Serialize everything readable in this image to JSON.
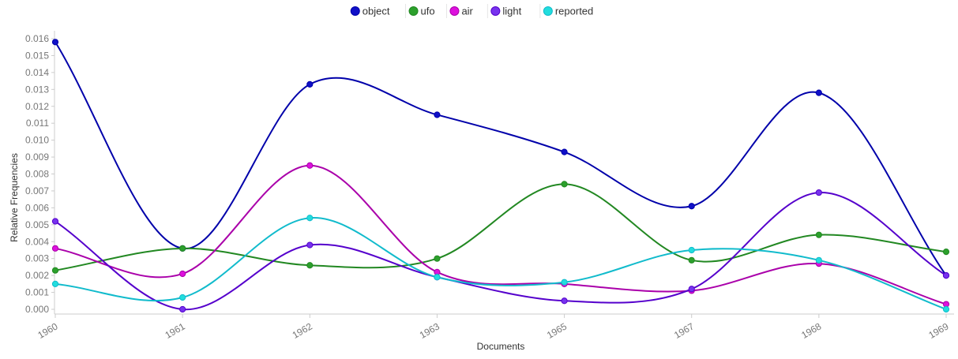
{
  "chart_data": {
    "type": "line",
    "xlabel": "Documents",
    "ylabel": "Relative Frequencies",
    "categories": [
      "1960",
      "1961",
      "1962",
      "1963",
      "1965",
      "1967",
      "1968",
      "1969"
    ],
    "ylim": [
      0,
      0.016
    ],
    "yticks": [
      "0.000",
      "0.001",
      "0.002",
      "0.003",
      "0.004",
      "0.005",
      "0.006",
      "0.007",
      "0.008",
      "0.009",
      "0.010",
      "0.011",
      "0.012",
      "0.013",
      "0.014",
      "0.015",
      "0.016"
    ],
    "legend_position": "top-center",
    "grid": false,
    "series": [
      {
        "name": "object",
        "color": "#0000aa",
        "point_color": "#1010c8",
        "values": [
          0.0158,
          0.0036,
          0.0133,
          0.0115,
          0.0093,
          0.0061,
          0.0128,
          0.002
        ]
      },
      {
        "name": "ufo",
        "color": "#228822",
        "point_color": "#2ca02c",
        "values": [
          0.0023,
          0.0036,
          0.0026,
          0.003,
          0.0074,
          0.0029,
          0.0044,
          0.0034
        ]
      },
      {
        "name": "air",
        "color": "#aa00aa",
        "point_color": "#dd11dd",
        "values": [
          0.0036,
          0.0021,
          0.0085,
          0.0022,
          0.0015,
          0.0011,
          0.0027,
          0.0003
        ]
      },
      {
        "name": "light",
        "color": "#5500cc",
        "point_color": "#7733ee",
        "values": [
          0.0052,
          0.0,
          0.0038,
          0.0019,
          0.0005,
          0.0012,
          0.0069,
          0.002
        ]
      },
      {
        "name": "reported",
        "color": "#11bbcc",
        "point_color": "#22dddd",
        "values": [
          0.0015,
          0.0007,
          0.0054,
          0.0019,
          0.0016,
          0.0035,
          0.0029,
          0.0
        ]
      }
    ]
  }
}
